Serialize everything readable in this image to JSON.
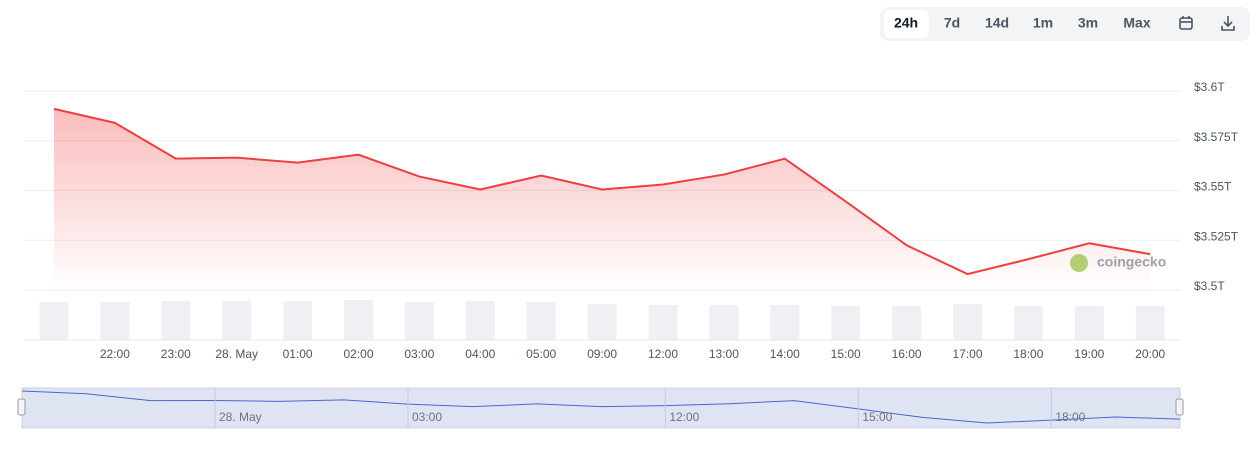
{
  "chart_data": {
    "type": "line",
    "range_buttons": [
      "24h",
      "7d",
      "14d",
      "1m",
      "3m",
      "Max"
    ],
    "watermark": "coingecko",
    "categories": [
      null,
      "22:00",
      "23:00",
      "28. May",
      "01:00",
      "02:00",
      "03:00",
      "04:00",
      "05:00",
      "09:00",
      "12:00",
      "13:00",
      "14:00",
      "15:00",
      "16:00",
      "17:00",
      "18:00",
      "19:00",
      "20:00"
    ],
    "series": [
      {
        "color": "#f03e3e",
        "values": [
          3.591,
          3.584,
          3.566,
          3.5665,
          3.564,
          3.568,
          3.557,
          3.5505,
          3.5575,
          3.5505,
          3.553,
          3.558,
          3.566,
          3.5445,
          3.5225,
          3.508,
          3.5155,
          3.5235,
          3.518
        ]
      }
    ],
    "volume": {
      "color": "#eef0f3",
      "values": [
        38,
        38,
        39,
        39,
        39,
        40,
        38,
        39,
        38,
        36,
        35,
        35,
        35,
        34,
        34,
        36,
        34,
        34,
        34
      ]
    },
    "ylim": [
      3.5,
      3.6
    ],
    "yticks": [
      {
        "value": 3.5,
        "label": "$3.5T"
      },
      {
        "value": 3.525,
        "label": "$3.525T"
      },
      {
        "value": 3.55,
        "label": "$3.55T"
      },
      {
        "value": 3.575,
        "label": "$3.575T"
      },
      {
        "value": 3.6,
        "label": "$3.6T"
      }
    ],
    "grid": true,
    "navigator_color": "#4a66c9"
  }
}
